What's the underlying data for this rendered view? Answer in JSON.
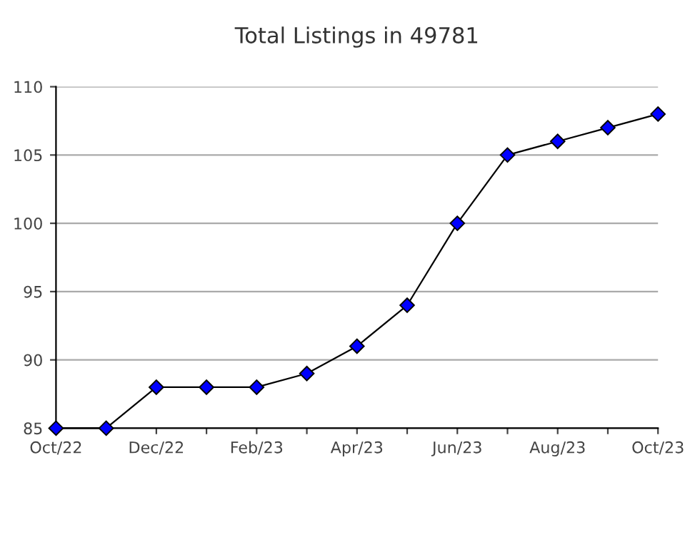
{
  "chart_data": {
    "type": "line",
    "title": "Total Listings in 49781",
    "categories": [
      "Oct/22",
      null,
      "Dec/22",
      null,
      "Feb/23",
      null,
      "Apr/23",
      null,
      "Jun/23",
      null,
      "Aug/23",
      null,
      "Oct/23"
    ],
    "series": [
      {
        "color": "#0000ff",
        "values": [
          85,
          85,
          88,
          88,
          88,
          89,
          91,
          94,
          100,
          105,
          106,
          107,
          108
        ]
      }
    ],
    "ylim": [
      85,
      110
    ],
    "yticks": [
      85,
      90,
      95,
      100,
      105,
      110
    ],
    "grid": "y",
    "marker": "diamond",
    "line_style": "solid"
  }
}
